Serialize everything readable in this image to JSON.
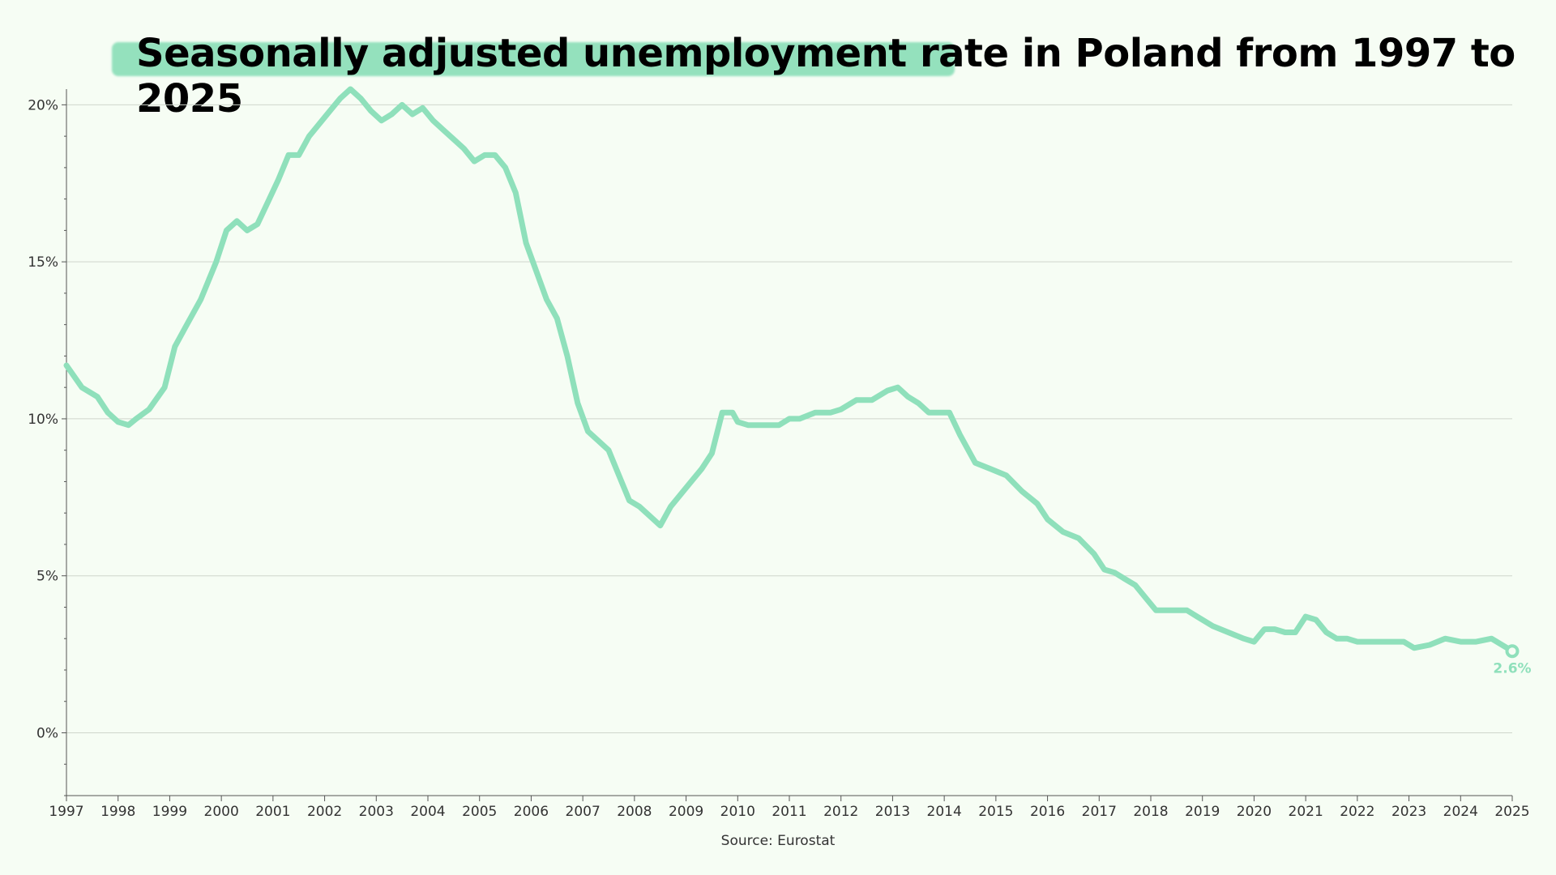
{
  "chart_data": {
    "type": "line",
    "title": "Seasonally adjusted unemployment rate in Poland from 1997 to 2025",
    "source": "Source: Eurostat",
    "xlabel": "",
    "ylabel": "",
    "xlim": [
      1997,
      2025
    ],
    "ylim": [
      -2,
      20.5
    ],
    "grid": true,
    "line_color": "#8fe0bb",
    "x_ticks": [
      "1997",
      "1998",
      "1999",
      "2000",
      "2001",
      "2002",
      "2003",
      "2004",
      "2005",
      "2006",
      "2007",
      "2008",
      "2009",
      "2010",
      "2011",
      "2012",
      "2013",
      "2014",
      "2015",
      "2016",
      "2017",
      "2018",
      "2019",
      "2020",
      "2021",
      "2022",
      "2023",
      "2024",
      "2025"
    ],
    "y_ticks": [
      {
        "value": 20,
        "label": "20%"
      },
      {
        "value": 15,
        "label": "15%"
      },
      {
        "value": 10,
        "label": "10%"
      },
      {
        "value": 5,
        "label": "5%"
      },
      {
        "value": 0,
        "label": "0%"
      }
    ],
    "end_label": "2.6%",
    "series": [
      {
        "x": [
          1997.0,
          1997.3,
          1997.6,
          1997.8,
          1998.0,
          1998.2,
          1998.35,
          1998.6,
          1998.9,
          1999.1,
          1999.3,
          1999.6,
          1999.9,
          2000.1,
          2000.3,
          2000.5,
          2000.7,
          2000.9,
          2001.1,
          2001.3,
          2001.5,
          2001.7,
          2001.9,
          2002.1,
          2002.3,
          2002.5,
          2002.7,
          2002.9,
          2003.1,
          2003.3,
          2003.5,
          2003.7,
          2003.9,
          2004.1,
          2004.3,
          2004.5,
          2004.7,
          2004.9,
          2005.1,
          2005.3,
          2005.5,
          2005.7,
          2005.9,
          2006.1,
          2006.3,
          2006.5,
          2006.7,
          2006.9,
          2007.1,
          2007.3,
          2007.5,
          2007.7,
          2007.9,
          2008.1,
          2008.3,
          2008.5,
          2008.7,
          2008.9,
          2009.1,
          2009.3,
          2009.5,
          2009.7,
          2009.9,
          2010.0,
          2010.2,
          2010.5,
          2010.8,
          2011.0,
          2011.2,
          2011.5,
          2011.8,
          2012.0,
          2012.3,
          2012.6,
          2012.9,
          2013.1,
          2013.3,
          2013.5,
          2013.7,
          2013.9,
          2014.1,
          2014.3,
          2014.6,
          2014.9,
          2015.2,
          2015.5,
          2015.8,
          2016.0,
          2016.3,
          2016.6,
          2016.9,
          2017.1,
          2017.3,
          2017.5,
          2017.7,
          2017.9,
          2018.1,
          2018.4,
          2018.7,
          2018.9,
          2019.2,
          2019.5,
          2019.8,
          2020.0,
          2020.2,
          2020.4,
          2020.6,
          2020.8,
          2021.0,
          2021.2,
          2021.4,
          2021.6,
          2021.8,
          2022.0,
          2022.3,
          2022.6,
          2022.9,
          2023.1,
          2023.4,
          2023.7,
          2024.0,
          2024.3,
          2024.6,
          2024.9,
          2025.0
        ],
        "y": [
          11.7,
          11.0,
          10.7,
          10.2,
          9.9,
          9.8,
          10.0,
          10.3,
          11.0,
          12.3,
          12.9,
          13.8,
          15.0,
          16.0,
          16.3,
          16.0,
          16.2,
          16.9,
          17.6,
          18.4,
          18.4,
          19.0,
          19.4,
          19.8,
          20.2,
          20.5,
          20.2,
          19.8,
          19.5,
          19.7,
          20.0,
          19.7,
          19.9,
          19.5,
          19.2,
          18.9,
          18.6,
          18.2,
          18.4,
          18.4,
          18.0,
          17.2,
          15.6,
          14.7,
          13.8,
          13.2,
          12.0,
          10.5,
          9.6,
          9.3,
          9.0,
          8.2,
          7.4,
          7.2,
          6.9,
          6.6,
          7.2,
          7.6,
          8.0,
          8.4,
          8.9,
          10.2,
          10.2,
          9.9,
          9.8,
          9.8,
          9.8,
          10.0,
          10.0,
          10.2,
          10.2,
          10.3,
          10.6,
          10.6,
          10.9,
          11.0,
          10.7,
          10.5,
          10.2,
          10.2,
          10.2,
          9.5,
          8.6,
          8.4,
          8.2,
          7.7,
          7.3,
          6.8,
          6.4,
          6.2,
          5.7,
          5.2,
          5.1,
          4.9,
          4.7,
          4.3,
          3.9,
          3.9,
          3.9,
          3.7,
          3.4,
          3.2,
          3.0,
          2.9,
          3.3,
          3.3,
          3.2,
          3.2,
          3.7,
          3.6,
          3.2,
          3.0,
          3.0,
          2.9,
          2.9,
          2.9,
          2.9,
          2.7,
          2.8,
          3.0,
          2.9,
          2.9,
          3.0,
          2.7,
          2.6
        ]
      }
    ]
  }
}
